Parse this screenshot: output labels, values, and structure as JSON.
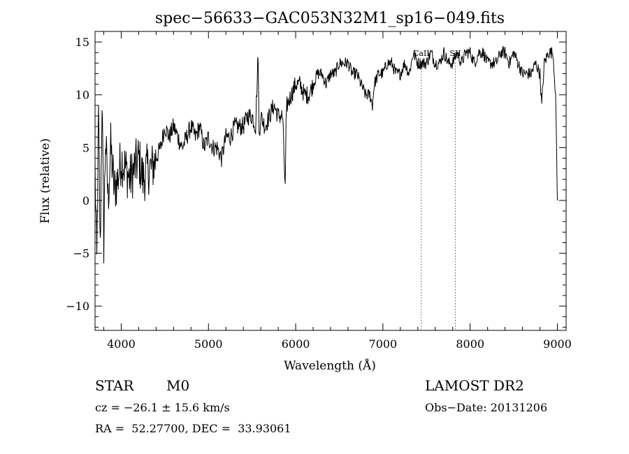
{
  "chart_data": {
    "type": "line",
    "title": "spec−56633−GAC053N32M1_sp16−049.fits",
    "xlabel": "Wavelength (Å)",
    "ylabel": "Flux (relative)",
    "xlim": [
      3700,
      9100
    ],
    "ylim": [
      -12.3,
      16
    ],
    "xticks": [
      4000,
      5000,
      6000,
      7000,
      8000,
      9000
    ],
    "xtick_labels": [
      "4000",
      "5000",
      "6000",
      "7000",
      "8000",
      "9000"
    ],
    "yticks": [
      -10,
      -5,
      0,
      5,
      10,
      15
    ],
    "ytick_labels": [
      "−10",
      "−5",
      "0",
      "5",
      "10",
      "15"
    ],
    "grid": false,
    "series": [
      {
        "x": [
          3700,
          3720,
          3740,
          3760,
          3780,
          3800,
          3820,
          3850,
          3880,
          3920,
          3960,
          4000,
          4050,
          4100,
          4150,
          4200,
          4250,
          4300,
          4350,
          4400,
          4450,
          4500,
          4550,
          4600,
          4650,
          4700,
          4750,
          4800,
          4850,
          4900,
          4950,
          5000,
          5050,
          5100,
          5150,
          5200,
          5250,
          5300,
          5350,
          5400,
          5450,
          5500,
          5540,
          5570,
          5580,
          5600,
          5650,
          5700,
          5750,
          5800,
          5850,
          5880,
          5890,
          5900,
          5950,
          6000,
          6050,
          6100,
          6150,
          6200,
          6250,
          6300,
          6350,
          6400,
          6450,
          6500,
          6550,
          6600,
          6650,
          6700,
          6750,
          6800,
          6850,
          6880,
          6900,
          6950,
          7000,
          7050,
          7100,
          7150,
          7200,
          7250,
          7300,
          7350,
          7400,
          7450,
          7500,
          7550,
          7600,
          7650,
          7700,
          7750,
          7800,
          7850,
          7900,
          7950,
          8000,
          8050,
          8100,
          8150,
          8200,
          8250,
          8300,
          8350,
          8400,
          8450,
          8500,
          8550,
          8600,
          8650,
          8700,
          8750,
          8800,
          8820,
          8850,
          8900,
          8950,
          8980,
          9000
        ],
        "y": [
          3,
          -6,
          8,
          -5,
          10,
          -4,
          6,
          0,
          5,
          1,
          2,
          4,
          3,
          2,
          3,
          4,
          2,
          3,
          3,
          4,
          5,
          7,
          6,
          7,
          6,
          5,
          6,
          7,
          6,
          7,
          5,
          6,
          5,
          5,
          4,
          6,
          6,
          7,
          7,
          7,
          8,
          8,
          7,
          14,
          6,
          8,
          7,
          8,
          9,
          8,
          8,
          1,
          7,
          9,
          10,
          11,
          11,
          10,
          10,
          11,
          12,
          12,
          11,
          12,
          12,
          13,
          13,
          13,
          12,
          12,
          11,
          10,
          10,
          9,
          11,
          12,
          12,
          13,
          13,
          12,
          12,
          13,
          12,
          14,
          13,
          13,
          13,
          14,
          13,
          13,
          14,
          13,
          13,
          14,
          13,
          14,
          14,
          13,
          14,
          14,
          13,
          13,
          13,
          14,
          14,
          13,
          14,
          13,
          12,
          12,
          12,
          13,
          12,
          9,
          13,
          14,
          14,
          10,
          0
        ]
      }
    ],
    "annotations": [
      {
        "label": "CaII",
        "x": 7440
      },
      {
        "label": "SII",
        "x": 7830
      }
    ]
  },
  "info": {
    "class_label": "STAR",
    "subclass_label": "M0",
    "cz_text": "cz = −26.1 ± 15.6 km/s",
    "radec_text": "RA =  52.27700, DEC =  33.93061",
    "survey_label": "LAMOST DR2",
    "obs_text": "Obs−Date: 20131206"
  }
}
